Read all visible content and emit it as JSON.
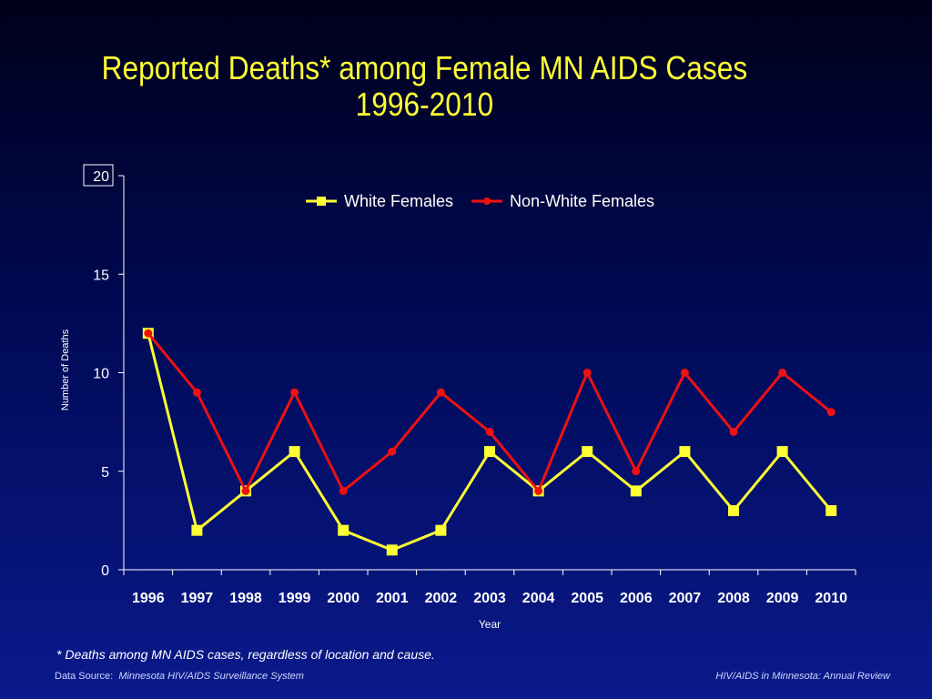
{
  "title_line1": "Reported Deaths* among Female MN AIDS Cases",
  "title_line2": "1996-2010",
  "footnote": "* Deaths among MN AIDS cases, regardless of location and cause.",
  "data_source_label": "Data Source:",
  "data_source_name": "Minnesota HIV/AIDS Surveillance System",
  "review_label": "HIV/AIDS in Minnesota: Annual Review",
  "chart_data": {
    "type": "line",
    "title": "Reported Deaths* among Female MN AIDS Cases 1996-2010",
    "xlabel": "Year",
    "ylabel": "Number of Deaths",
    "ylim": [
      0,
      20
    ],
    "yticks": [
      0,
      5,
      10,
      15,
      20
    ],
    "grid": false,
    "legend_position": "top",
    "categories": [
      "1996",
      "1997",
      "1998",
      "1999",
      "2000",
      "2001",
      "2002",
      "2003",
      "2004",
      "2005",
      "2006",
      "2007",
      "2008",
      "2009",
      "2010"
    ],
    "series": [
      {
        "name": "White Females",
        "color": "#ffff33",
        "marker": "square",
        "values": [
          12,
          2,
          4,
          6,
          2,
          1,
          2,
          6,
          4,
          6,
          4,
          6,
          3,
          6,
          3
        ]
      },
      {
        "name": "Non-White Females",
        "color": "#ee1111",
        "marker": "circle",
        "values": [
          12,
          9,
          4,
          9,
          4,
          6,
          9,
          7,
          4,
          10,
          5,
          10,
          7,
          10,
          8
        ]
      }
    ]
  }
}
